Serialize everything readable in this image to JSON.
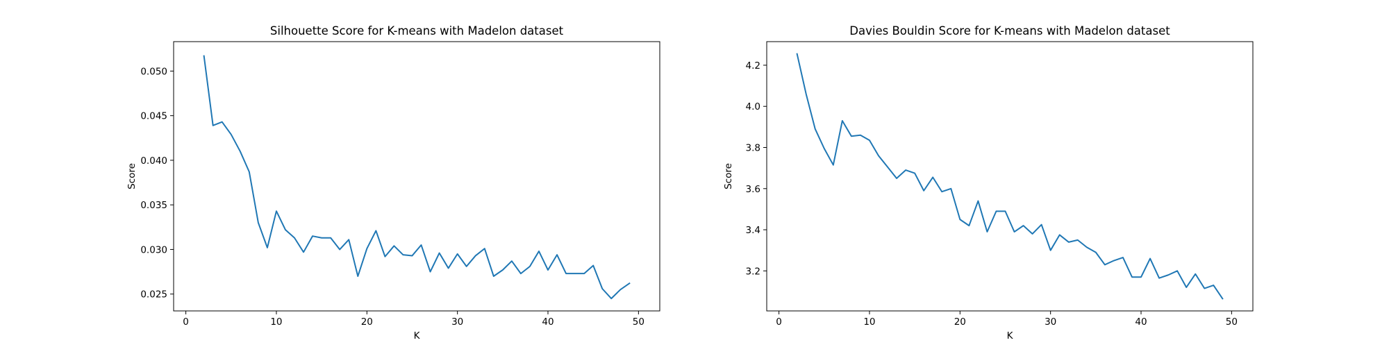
{
  "chart_data": [
    {
      "type": "line",
      "title": "Silhouette Score for K-means with Madelon dataset",
      "xlabel": "K",
      "ylabel": "Score",
      "xlim": [
        -1.35,
        52.35
      ],
      "ylim": [
        0.02311,
        0.0533
      ],
      "grid": false,
      "xticks": [
        0,
        10,
        20,
        30,
        40,
        50
      ],
      "yticks": [
        0.025,
        0.03,
        0.035,
        0.04,
        0.045,
        0.05
      ],
      "xtick_labels": [
        "0",
        "10",
        "20",
        "30",
        "40",
        "50"
      ],
      "ytick_labels": [
        "0.025",
        "0.030",
        "0.035",
        "0.040",
        "0.045",
        "0.050"
      ],
      "color": "#1f77b4",
      "series": [
        {
          "x": [
            2,
            3,
            4,
            5,
            6,
            7,
            8,
            9,
            10,
            11,
            12,
            13,
            14,
            15,
            16,
            17,
            18,
            19,
            20,
            21,
            22,
            23,
            24,
            25,
            26,
            27,
            28,
            29,
            30,
            31,
            32,
            33,
            34,
            35,
            36,
            37,
            38,
            39,
            40,
            41,
            42,
            43,
            44,
            45,
            46,
            47,
            48,
            49
          ],
          "y": [
            0.0517,
            0.0439,
            0.0443,
            0.0429,
            0.041,
            0.0387,
            0.033,
            0.0302,
            0.0343,
            0.0322,
            0.0313,
            0.0297,
            0.0315,
            0.0313,
            0.0313,
            0.03,
            0.0311,
            0.027,
            0.0301,
            0.0321,
            0.0292,
            0.0304,
            0.0294,
            0.0293,
            0.0305,
            0.0275,
            0.0296,
            0.0279,
            0.0295,
            0.0281,
            0.0293,
            0.0301,
            0.027,
            0.0277,
            0.0287,
            0.0273,
            0.0281,
            0.0298,
            0.0277,
            0.0294,
            0.0273,
            0.0273,
            0.0273,
            0.0282,
            0.0256,
            0.0245,
            0.0255,
            0.0262
          ]
        }
      ]
    },
    {
      "type": "line",
      "title": "Davies Bouldin Score for K-means with Madelon dataset",
      "xlabel": "K",
      "ylabel": "Score",
      "xlim": [
        -1.35,
        52.35
      ],
      "ylim": [
        3.0054,
        4.3146
      ],
      "grid": false,
      "xticks": [
        0,
        10,
        20,
        30,
        40,
        50
      ],
      "yticks": [
        3.2,
        3.4,
        3.6,
        3.8,
        4.0,
        4.2
      ],
      "xtick_labels": [
        "0",
        "10",
        "20",
        "30",
        "40",
        "50"
      ],
      "ytick_labels": [
        "3.2",
        "3.4",
        "3.6",
        "3.8",
        "4.0",
        "4.2"
      ],
      "color": "#1f77b4",
      "series": [
        {
          "x": [
            2,
            3,
            4,
            5,
            6,
            7,
            8,
            9,
            10,
            11,
            12,
            13,
            14,
            15,
            16,
            17,
            18,
            19,
            20,
            21,
            22,
            23,
            24,
            25,
            26,
            27,
            28,
            29,
            30,
            31,
            32,
            33,
            34,
            35,
            36,
            37,
            38,
            39,
            40,
            41,
            42,
            43,
            44,
            45,
            46,
            47,
            48,
            49
          ],
          "y": [
            4.255,
            4.06,
            3.89,
            3.795,
            3.715,
            3.93,
            3.855,
            3.86,
            3.835,
            3.76,
            3.705,
            3.65,
            3.69,
            3.675,
            3.59,
            3.655,
            3.585,
            3.6,
            3.45,
            3.42,
            3.54,
            3.39,
            3.49,
            3.49,
            3.39,
            3.42,
            3.38,
            3.425,
            3.3,
            3.375,
            3.34,
            3.35,
            3.315,
            3.29,
            3.23,
            3.25,
            3.265,
            3.17,
            3.17,
            3.26,
            3.165,
            3.18,
            3.2,
            3.12,
            3.185,
            3.115,
            3.13,
            3.065
          ]
        }
      ]
    }
  ]
}
